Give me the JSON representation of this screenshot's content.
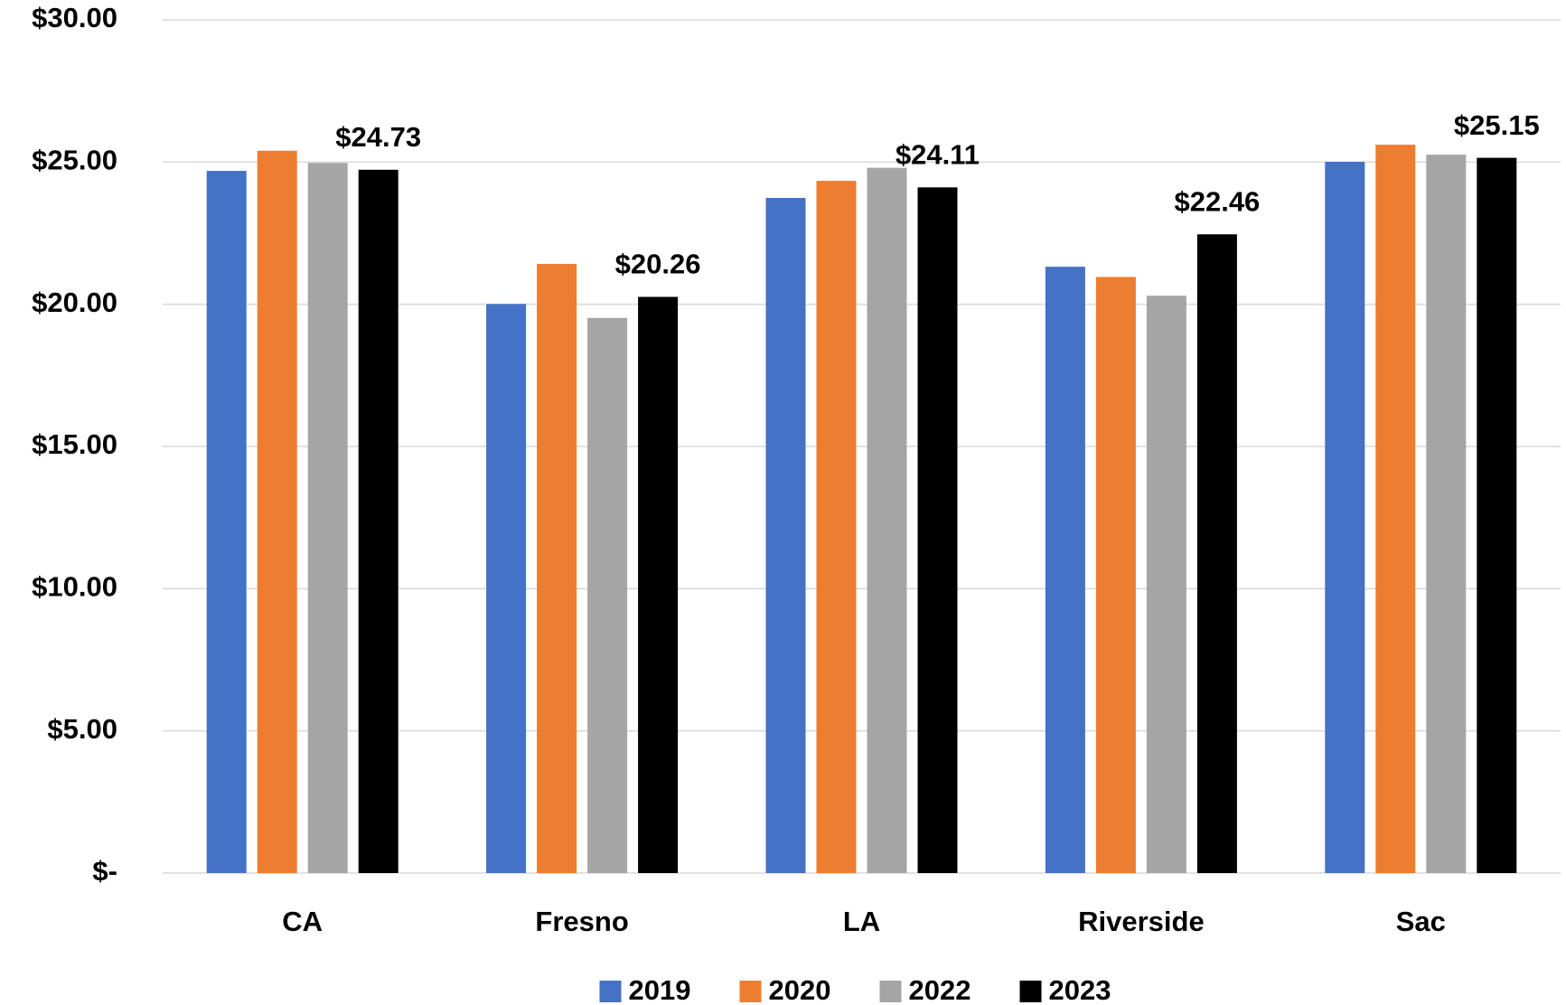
{
  "chart_data": {
    "type": "bar",
    "categories": [
      "CA",
      "Fresno",
      "LA",
      "Riverside",
      "Sac"
    ],
    "series": [
      {
        "name": "2019",
        "color": "#4472c4",
        "values": [
          24.69,
          20.01,
          23.74,
          21.32,
          25.01
        ]
      },
      {
        "name": "2020",
        "color": "#ed7d31",
        "values": [
          25.4,
          21.42,
          24.34,
          20.96,
          25.61
        ]
      },
      {
        "name": "2022",
        "color": "#a5a5a5",
        "values": [
          24.97,
          19.52,
          24.8,
          20.3,
          25.26
        ]
      },
      {
        "name": "2023",
        "color": "#000000",
        "values": [
          24.73,
          20.26,
          24.11,
          22.46,
          25.15
        ],
        "value_labels": [
          "$24.73",
          "$20.26",
          "$24.11",
          "$22.46",
          "$25.15"
        ]
      }
    ],
    "ylim": [
      0,
      30
    ],
    "yticks": [
      {
        "value": 0,
        "label": "$-"
      },
      {
        "value": 5,
        "label": "$5.00"
      },
      {
        "value": 10,
        "label": "$10.00"
      },
      {
        "value": 15,
        "label": "$15.00"
      },
      {
        "value": 20,
        "label": "$20.00"
      },
      {
        "value": 25,
        "label": "$25.00"
      },
      {
        "value": 30,
        "label": "$30.00"
      }
    ],
    "grid": true,
    "legend": "bottom"
  }
}
